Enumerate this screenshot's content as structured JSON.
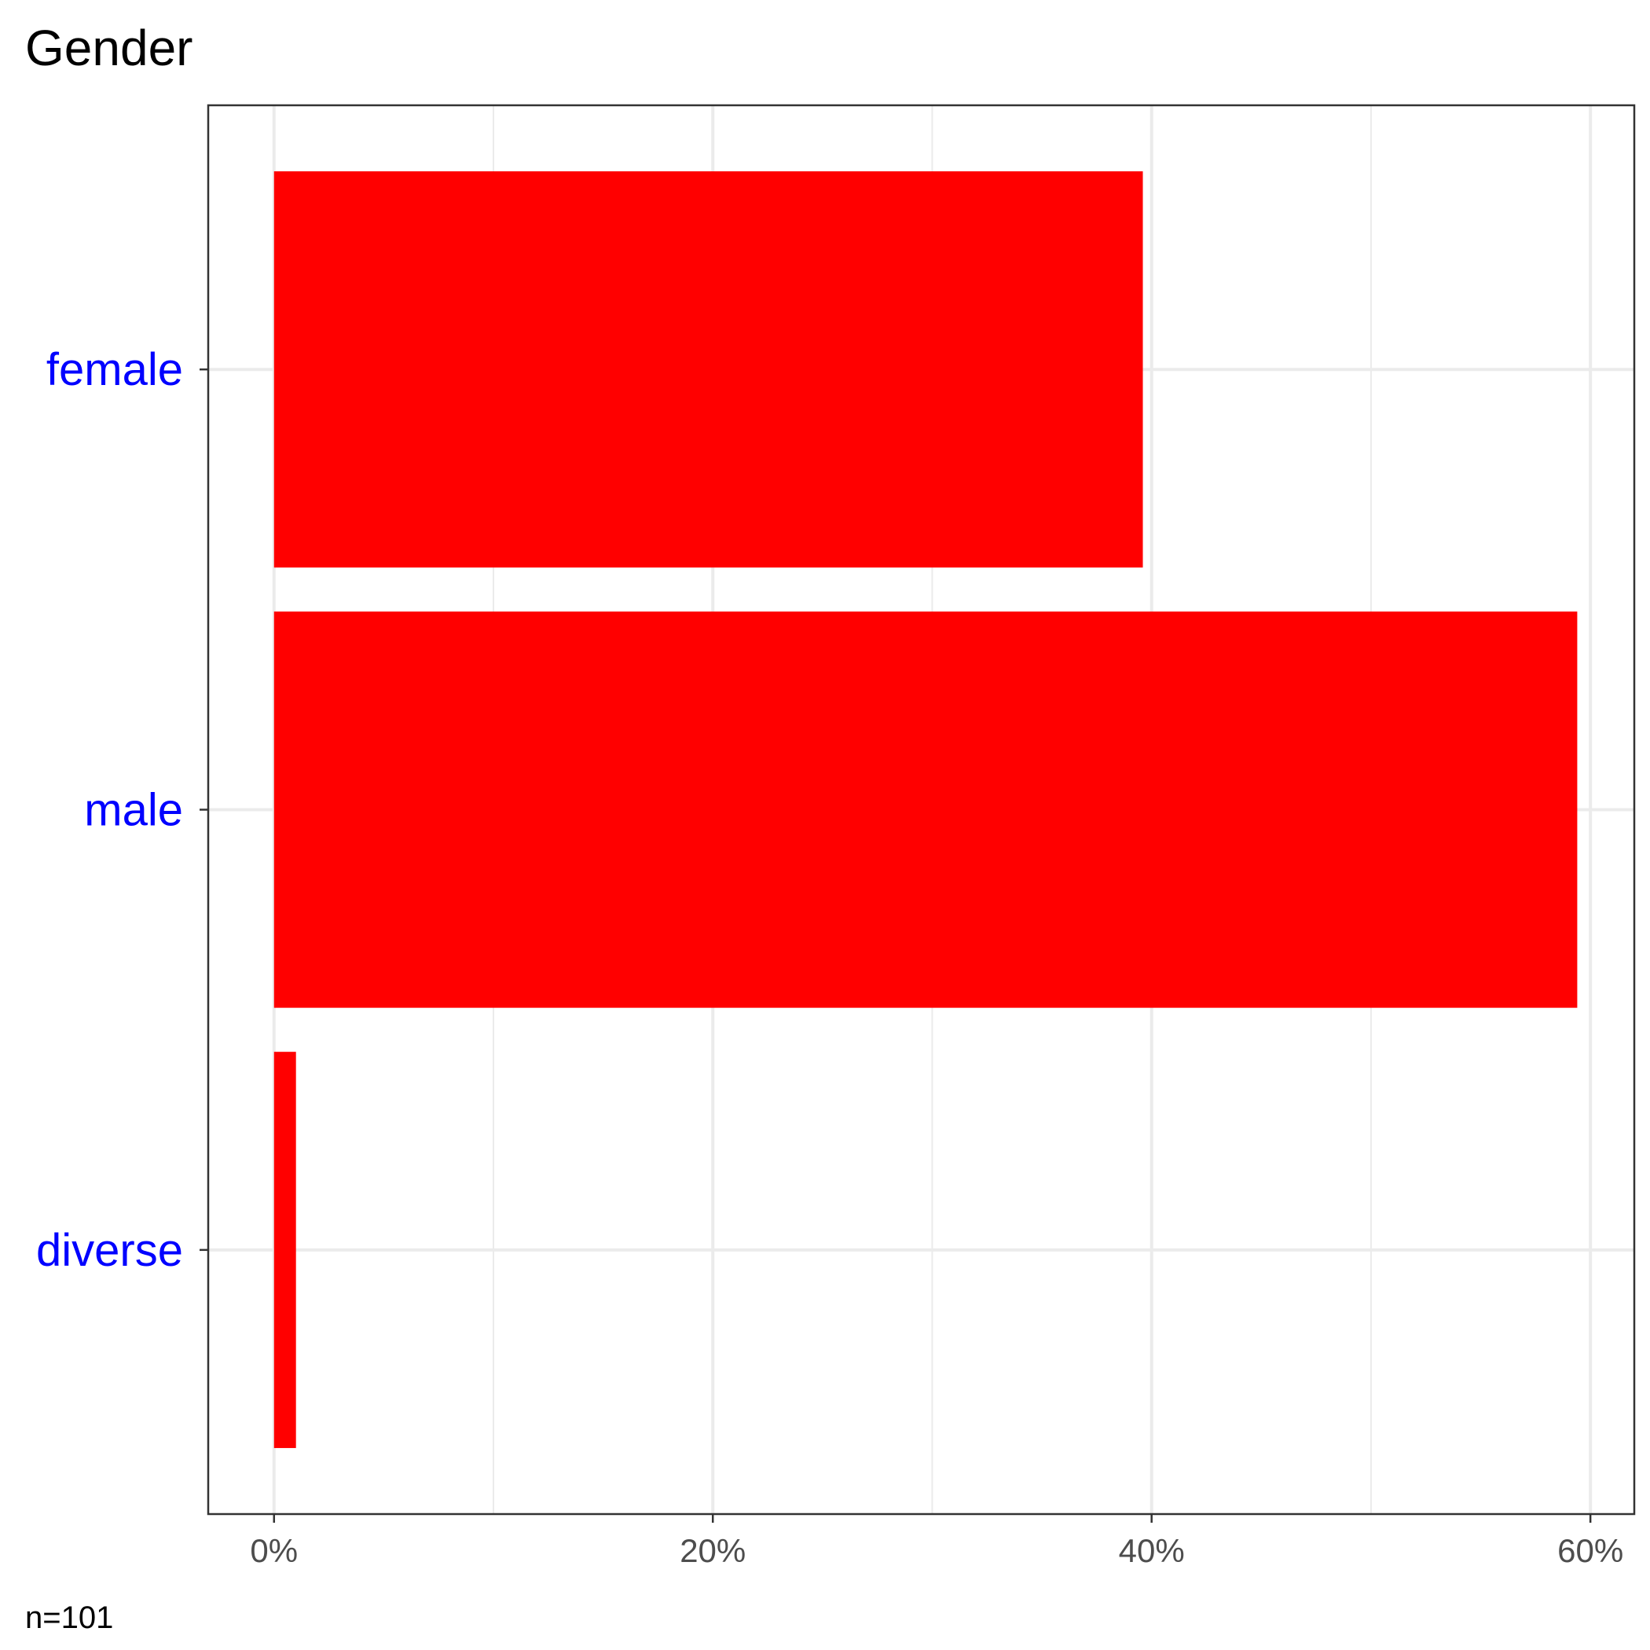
{
  "chart_data": {
    "type": "bar",
    "orientation": "horizontal",
    "title": "Gender",
    "caption": "n=101",
    "xlabel": "",
    "ylabel": "",
    "categories": [
      "female",
      "male",
      "diverse"
    ],
    "values": [
      39.6,
      59.4,
      1.0
    ],
    "value_unit": "%",
    "xlim": [
      -3,
      62
    ],
    "x_ticks": [
      0,
      20,
      40,
      60
    ],
    "x_tick_labels": [
      "0%",
      "20%",
      "40%",
      "60%"
    ],
    "grid": true,
    "legend": "none",
    "colors": {
      "bar": "#ff0000",
      "category_label": "#0000ff",
      "tick_label": "#4d4d4d",
      "grid": "#ebebeb",
      "panel_border": "#333333"
    }
  }
}
